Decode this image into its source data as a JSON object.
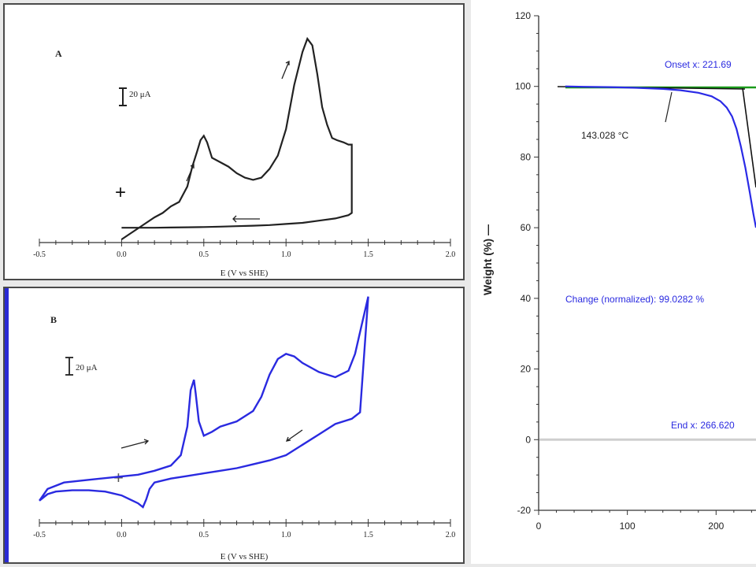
{
  "chart_data": [
    {
      "type": "line",
      "panel_label": "A",
      "xlabel": "E (V vs SHE)",
      "xticks": [
        "-0.5",
        "0.0",
        "0.5",
        "1.0",
        "1.5",
        "2.0"
      ],
      "xlim": [
        -0.5,
        2.0
      ],
      "scale_bar": "20 μA",
      "series": [
        {
          "x": [
            0.0,
            0.05,
            0.1,
            0.15,
            0.2,
            0.25,
            0.3,
            0.35,
            0.4,
            0.43,
            0.46,
            0.48,
            0.5,
            0.52,
            0.55,
            0.6,
            0.65,
            0.7,
            0.75,
            0.8,
            0.85,
            0.9,
            0.95,
            1.0,
            1.05,
            1.1,
            1.13,
            1.16,
            1.19,
            1.22,
            1.25,
            1.28,
            1.31,
            1.35,
            1.38,
            1.4,
            1.4,
            1.38,
            1.3,
            1.2,
            1.1,
            1.0,
            0.9,
            0.8,
            0.7,
            0.6,
            0.5,
            0.4,
            0.3,
            0.2,
            0.1,
            0.0
          ],
          "y": [
            0,
            2.5,
            5,
            7.5,
            10,
            12,
            15,
            17,
            24,
            33,
            40,
            45,
            47,
            44,
            37,
            35,
            33,
            30,
            28,
            27,
            28,
            32,
            38,
            50,
            70,
            85,
            91,
            88,
            75,
            60,
            52,
            46,
            45,
            44,
            43,
            43,
            12,
            11,
            9.5,
            8.5,
            7.5,
            7,
            6.5,
            6.2,
            6,
            5.8,
            5.6,
            5.5,
            5.4,
            5.3,
            5.3,
            5.3
          ]
        }
      ]
    },
    {
      "type": "line",
      "panel_label": "B",
      "xlabel": "E (V vs SHE)",
      "xticks": [
        "-0.5",
        "0.0",
        "0.5",
        "1.0",
        "1.5",
        "2.0"
      ],
      "xlim": [
        -0.5,
        2.0
      ],
      "scale_bar": "20 μA",
      "series": [
        {
          "x": [
            -0.5,
            -0.45,
            -0.35,
            -0.2,
            -0.05,
            0.1,
            0.2,
            0.3,
            0.36,
            0.4,
            0.42,
            0.44,
            0.45,
            0.47,
            0.5,
            0.55,
            0.6,
            0.7,
            0.8,
            0.85,
            0.9,
            0.95,
            1.0,
            1.05,
            1.1,
            1.2,
            1.3,
            1.38,
            1.42,
            1.46,
            1.5,
            1.45,
            1.4,
            1.3,
            1.2,
            1.1,
            1.0,
            0.9,
            0.8,
            0.7,
            0.6,
            0.5,
            0.4,
            0.3,
            0.2,
            0.17,
            0.15,
            0.13,
            0.1,
            0.0,
            -0.1,
            -0.2,
            -0.3,
            -0.4,
            -0.45,
            -0.5
          ],
          "y": [
            5,
            14,
            19,
            21,
            23,
            25,
            28,
            32,
            40,
            62,
            90,
            98,
            88,
            66,
            55,
            58,
            62,
            66,
            74,
            85,
            102,
            114,
            118,
            116,
            111,
            104,
            100,
            105,
            118,
            140,
            162,
            73,
            68,
            64,
            56,
            48,
            40,
            36,
            33,
            30,
            28,
            26,
            24,
            22,
            19,
            14,
            6,
            0,
            3,
            9,
            12,
            13,
            13,
            12,
            10,
            5
          ]
        }
      ]
    },
    {
      "type": "line",
      "ylabel": "Weight (%)",
      "ylabel_suffix": "—",
      "yticks": [
        "120",
        "100",
        "80",
        "60",
        "40",
        "20",
        "0",
        "-20"
      ],
      "xticks": [
        "0",
        "100",
        "200"
      ],
      "ylim": [
        -20,
        120
      ],
      "xlim": [
        0,
        245
      ],
      "annotations": {
        "onset": "Onset x: 221.69",
        "temp": "143.028 °C",
        "change": "Change (normalized): 99.0282 %",
        "end": "End x: 266.620"
      },
      "series": [
        {
          "x": [
            30,
            50,
            80,
            110,
            140,
            160,
            180,
            195,
            205,
            212,
            218,
            223,
            228,
            233,
            238,
            242,
            245
          ],
          "y": [
            100,
            99.9,
            99.8,
            99.6,
            99.3,
            98.9,
            98.2,
            97.2,
            95.8,
            94.0,
            91.5,
            88.0,
            83.0,
            77.0,
            70.0,
            64.0,
            60.0
          ]
        }
      ],
      "baseline_y": 0
    }
  ]
}
